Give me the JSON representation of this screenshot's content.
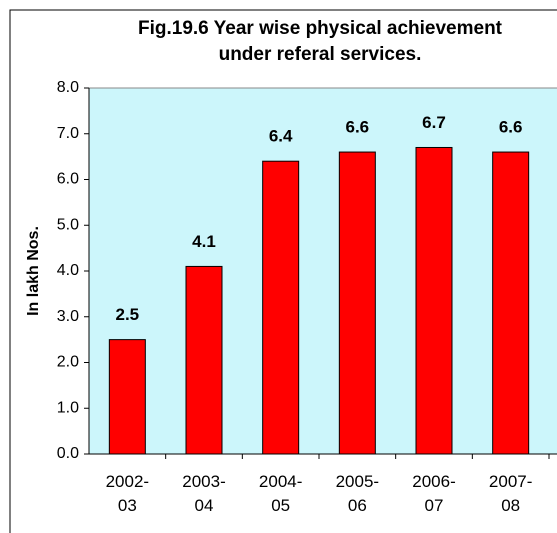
{
  "chart_data": {
    "type": "bar",
    "title": "Fig.19.6 Year wise physical achievement under referal services.",
    "y_label": "In lakh Nos.",
    "categories": [
      "2002-03",
      "2003-04",
      "2004-05",
      "2005-06",
      "2006-07",
      "2007-08"
    ],
    "values": [
      2.5,
      4.1,
      6.4,
      6.6,
      6.7,
      6.6
    ],
    "color": "#ff0000",
    "ylim": [
      0,
      8
    ],
    "yticks": [
      {
        "value": 0,
        "label": "0.0"
      },
      {
        "value": 1,
        "label": "1.0"
      },
      {
        "value": 2,
        "label": "2.0"
      },
      {
        "value": 3,
        "label": "3.0"
      },
      {
        "value": 4,
        "label": "4.0"
      },
      {
        "value": 5,
        "label": "5.0"
      },
      {
        "value": 6,
        "label": "6.0"
      },
      {
        "value": 7,
        "label": "7.0"
      },
      {
        "value": 8,
        "label": "8.0"
      }
    ],
    "grid": false
  }
}
